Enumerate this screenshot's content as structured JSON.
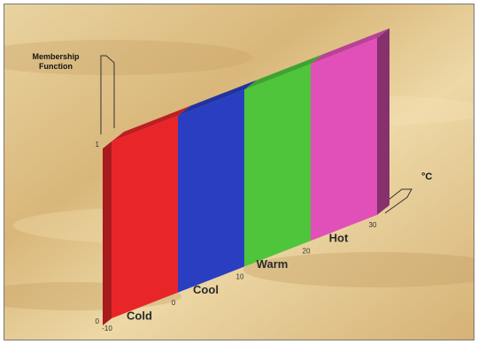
{
  "chart_data": {
    "type": "bar",
    "title": "",
    "ylabel": [
      "Membership",
      "Function"
    ],
    "xlabel": "°C",
    "categories": [
      "Cold",
      "Cool",
      "Warm",
      "Hot"
    ],
    "x_ticks": [
      "-10",
      "0",
      "10",
      "20",
      "30"
    ],
    "y_ticks": [
      "0",
      "1"
    ],
    "series": [
      {
        "values": [
          1,
          1,
          1,
          1
        ]
      }
    ],
    "ranges": [
      [
        -10,
        0
      ],
      [
        0,
        10
      ],
      [
        10,
        20
      ],
      [
        20,
        30
      ]
    ],
    "ylim": [
      0,
      1
    ],
    "colors": [
      "#e8262a",
      "#2a3ec2",
      "#4ec53a",
      "#e050b8"
    ],
    "background": "#e3c98e"
  }
}
